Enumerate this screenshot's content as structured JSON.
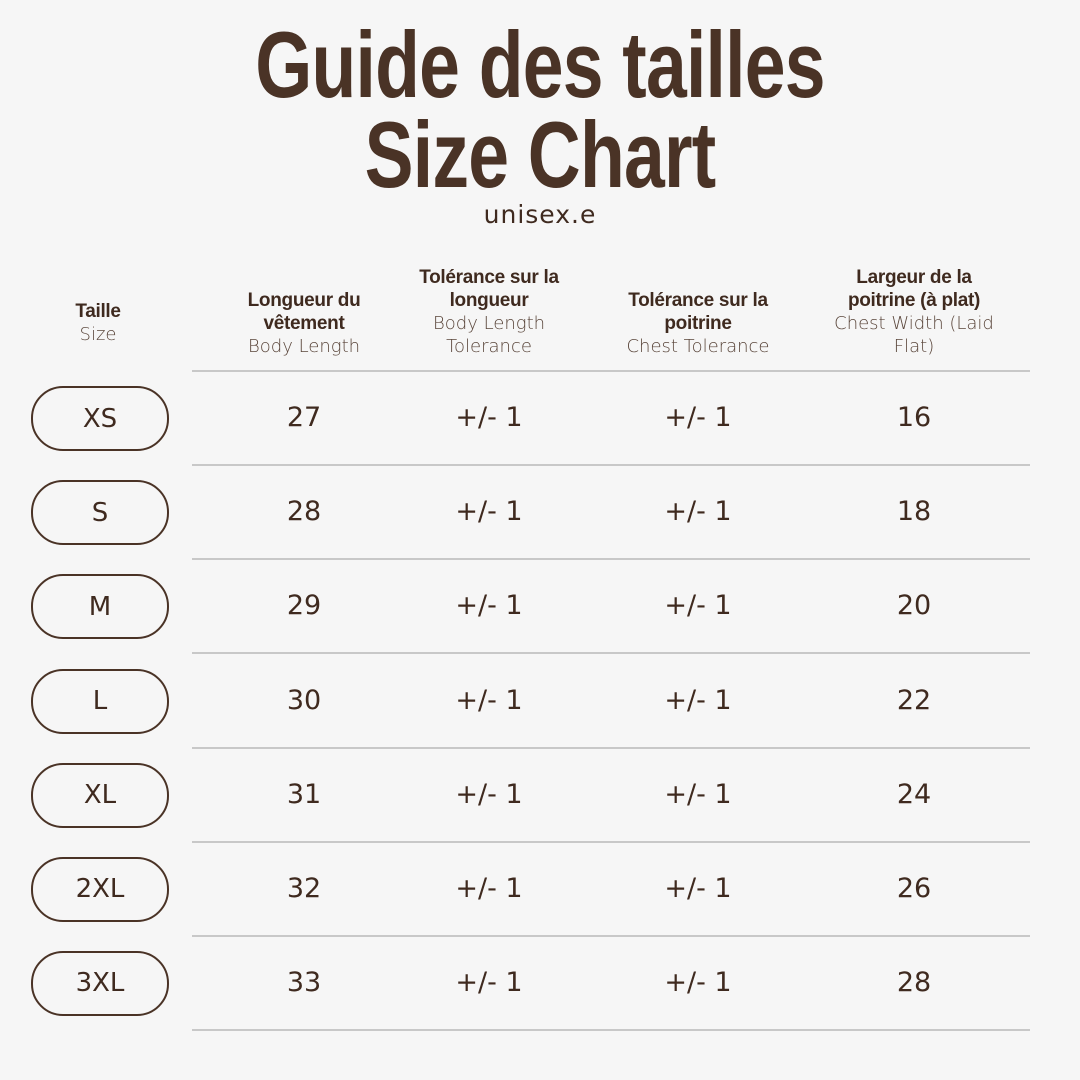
{
  "header": {
    "title_fr": "Guide des tailles",
    "title_en": "Size Chart",
    "subtitle": "unisex.e"
  },
  "table": {
    "columns": [
      {
        "fr": "Taille",
        "en": "Size"
      },
      {
        "fr": "Longueur du vêtement",
        "en": "Body Length"
      },
      {
        "fr": "Tolérance sur la longueur",
        "en": "Body Length Tolerance"
      },
      {
        "fr": "Tolérance sur la poitrine",
        "en": "Chest Tolerance"
      },
      {
        "fr": "Largeur de la poitrine (à plat)",
        "en": "Chest Width (Laid Flat)"
      }
    ],
    "rows": [
      [
        "XS",
        "27",
        "+/- 1",
        "+/- 1",
        "16"
      ],
      [
        "S",
        "28",
        "+/- 1",
        "+/- 1",
        "18"
      ],
      [
        "M",
        "29",
        "+/- 1",
        "+/- 1",
        "20"
      ],
      [
        "L",
        "30",
        "+/- 1",
        "+/- 1",
        "22"
      ],
      [
        "XL",
        "31",
        "+/- 1",
        "+/- 1",
        "24"
      ],
      [
        "2XL",
        "32",
        "+/- 1",
        "+/- 1",
        "26"
      ],
      [
        "3XL",
        "33",
        "+/- 1",
        "+/- 1",
        "28"
      ]
    ]
  }
}
